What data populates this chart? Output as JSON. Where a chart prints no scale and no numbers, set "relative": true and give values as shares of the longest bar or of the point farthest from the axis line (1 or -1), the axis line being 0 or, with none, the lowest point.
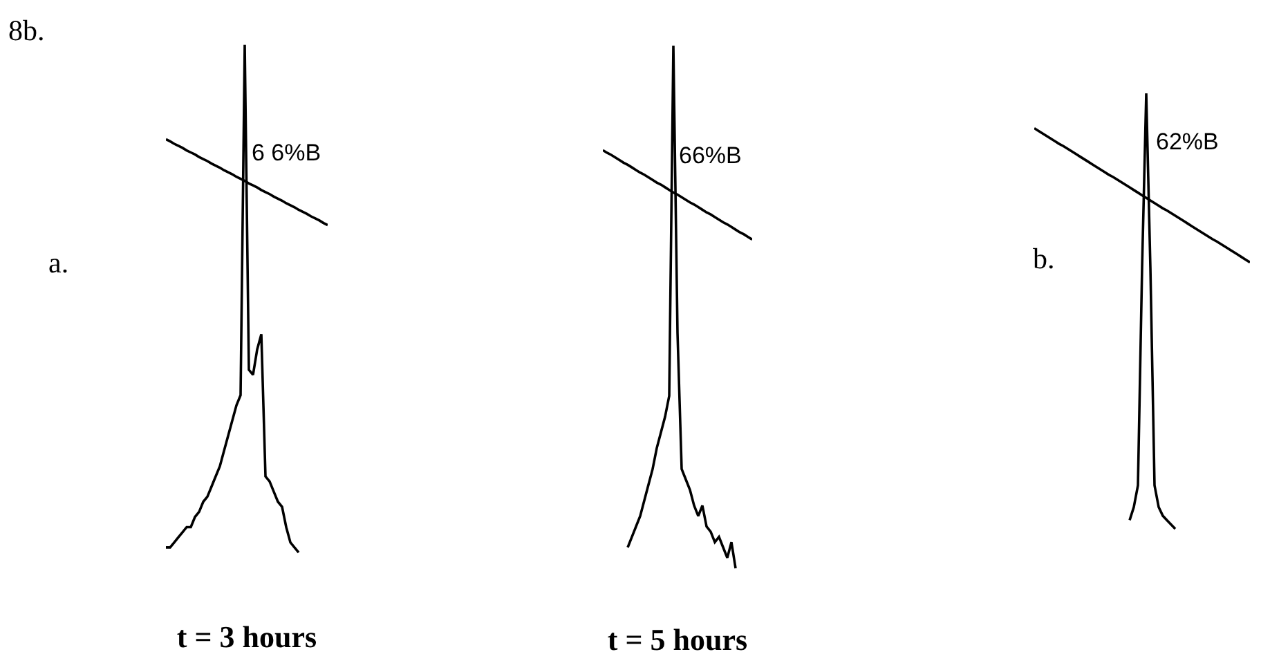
{
  "chart_data": [
    {
      "type": "line",
      "relative": true,
      "xlabel": "t = 3 hours",
      "annotations": [
        "8b.",
        "a.",
        "6 6%B"
      ],
      "categories": [
        null,
        null,
        null,
        null,
        null,
        null,
        null,
        null,
        null,
        null,
        null,
        null,
        null,
        null,
        null,
        null,
        null,
        null,
        null,
        null,
        null,
        null,
        null,
        null,
        null,
        null,
        null,
        null,
        null,
        null,
        null,
        null,
        null,
        null,
        null,
        null,
        null,
        null,
        null,
        null
      ],
      "series": [
        {
          "color": "#000000",
          "values": [
            0.01,
            0.01,
            0.02,
            0.03,
            0.04,
            0.05,
            0.05,
            0.07,
            0.08,
            0.1,
            0.11,
            0.13,
            0.15,
            0.17,
            0.2,
            0.23,
            0.26,
            0.29,
            0.31,
            1,
            0.36,
            0.35,
            0.4,
            0.43,
            0.15,
            0.14,
            0.12,
            0.1,
            0.09,
            0.05,
            0.02,
            0.01,
            0,
            null,
            null,
            null,
            null,
            null,
            null,
            null
          ]
        },
        {
          "color": "#000000",
          "values": [
            0.814,
            0.81,
            0.805,
            0.801,
            0.797,
            0.792,
            0.788,
            0.784,
            0.779,
            0.775,
            0.771,
            0.766,
            0.762,
            0.758,
            0.753,
            0.749,
            0.745,
            0.74,
            0.736,
            0.732,
            0.727,
            0.723,
            0.719,
            0.714,
            0.71,
            0.706,
            0.701,
            0.697,
            0.693,
            0.688,
            0.684,
            0.68,
            0.675,
            0.671,
            0.667,
            0.662,
            0.658,
            0.654,
            0.649,
            0.645
          ]
        }
      ]
    },
    {
      "type": "line",
      "relative": true,
      "xlabel": "t = 5 hours",
      "annotations": [
        "66%B"
      ],
      "categories": [
        null,
        null,
        null,
        null,
        null,
        null,
        null,
        null,
        null,
        null,
        null,
        null,
        null,
        null,
        null,
        null,
        null,
        null,
        null,
        null,
        null,
        null,
        null,
        null,
        null,
        null,
        null,
        null,
        null,
        null,
        null,
        null,
        null,
        null,
        null,
        null,
        null
      ],
      "series": [
        {
          "color": "#000000",
          "values": [
            null,
            null,
            null,
            null,
            null,
            null,
            0.04,
            0.06,
            0.08,
            0.1,
            0.13,
            0.16,
            0.19,
            0.23,
            0.26,
            0.29,
            0.33,
            1,
            0.45,
            0.19,
            0.17,
            0.15,
            0.12,
            0.1,
            0.12,
            0.08,
            0.07,
            0.05,
            0.06,
            0.04,
            0.02,
            0.05,
            0,
            null,
            null,
            null,
            null
          ]
        },
        {
          "color": "#000000",
          "values": [
            0.8,
            0.795,
            0.791,
            0.786,
            0.781,
            0.776,
            0.772,
            0.767,
            0.762,
            0.757,
            0.753,
            0.748,
            0.743,
            0.738,
            0.734,
            0.729,
            0.724,
            0.719,
            0.715,
            0.71,
            0.705,
            0.7,
            0.696,
            0.691,
            0.686,
            0.681,
            0.677,
            0.672,
            0.667,
            0.662,
            0.658,
            0.653,
            0.648,
            0.643,
            0.639,
            0.634,
            0.629
          ]
        }
      ]
    },
    {
      "type": "line",
      "relative": true,
      "annotations": [
        "b.",
        "62%B"
      ],
      "categories": [
        null,
        null,
        null,
        null,
        null,
        null,
        null,
        null,
        null,
        null,
        null,
        null,
        null,
        null,
        null,
        null,
        null,
        null,
        null,
        null,
        null,
        null,
        null,
        null,
        null,
        null,
        null,
        null,
        null,
        null,
        null,
        null,
        null,
        null,
        null,
        null,
        null,
        null,
        null,
        null,
        null,
        null,
        null,
        null,
        null,
        null,
        null,
        null,
        null,
        null,
        null,
        null,
        null
      ],
      "series": [
        {
          "color": "#000000",
          "values": [
            null,
            null,
            null,
            null,
            null,
            null,
            null,
            null,
            null,
            null,
            null,
            null,
            null,
            null,
            null,
            null,
            null,
            null,
            null,
            null,
            null,
            null,
            null,
            0.02,
            0.05,
            0.1,
            0.6,
            1,
            0.6,
            0.1,
            0.05,
            0.03,
            0.02,
            0.01,
            0,
            null,
            null,
            null,
            null,
            null,
            null,
            null,
            null,
            null,
            null,
            null,
            null,
            null,
            null,
            null,
            null,
            null,
            null
          ]
        },
        {
          "color": "#000000",
          "values": [
            0.92,
            0.914,
            0.908,
            0.902,
            0.896,
            0.89,
            0.884,
            0.879,
            0.873,
            0.867,
            0.861,
            0.855,
            0.849,
            0.843,
            0.837,
            0.831,
            0.825,
            0.819,
            0.813,
            0.808,
            0.802,
            0.796,
            0.79,
            0.784,
            0.778,
            0.772,
            0.766,
            0.76,
            0.754,
            0.748,
            0.742,
            0.736,
            0.731,
            0.725,
            0.719,
            0.713,
            0.707,
            0.701,
            0.695,
            0.689,
            0.683,
            0.677,
            0.671,
            0.665,
            0.66,
            0.654,
            0.648,
            0.642,
            0.636,
            0.63,
            0.624,
            0.618,
            0.612
          ]
        }
      ]
    }
  ]
}
